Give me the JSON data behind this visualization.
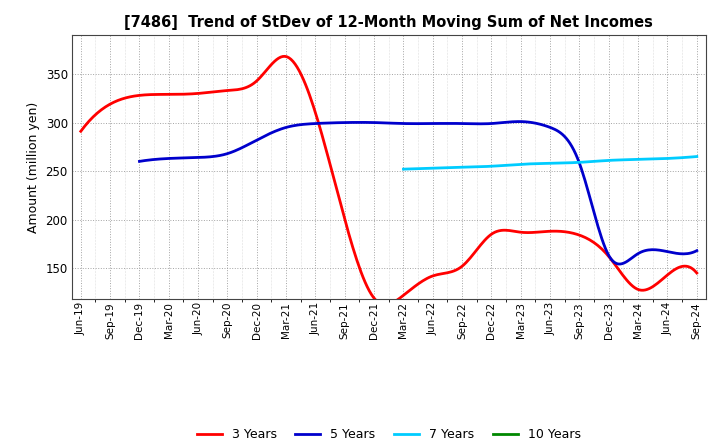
{
  "title": "[7486]  Trend of StDev of 12-Month Moving Sum of Net Incomes",
  "ylabel": "Amount (million yen)",
  "background_color": "#ffffff",
  "grid_color": "#999999",
  "ylim": [
    118,
    390
  ],
  "yticks": [
    150,
    200,
    250,
    300,
    350
  ],
  "x_labels": [
    "Jun-19",
    "Sep-19",
    "Dec-19",
    "Mar-20",
    "Jun-20",
    "Sep-20",
    "Dec-20",
    "Mar-21",
    "Jun-21",
    "Sep-21",
    "Dec-21",
    "Mar-22",
    "Jun-22",
    "Sep-22",
    "Dec-22",
    "Mar-23",
    "Jun-23",
    "Sep-23",
    "Dec-23",
    "Mar-24",
    "Jun-24",
    "Sep-24"
  ],
  "series": {
    "3 Years": {
      "color": "#ff0000",
      "data_x": [
        0,
        1,
        2,
        3,
        4,
        5,
        6,
        7,
        8,
        9,
        10,
        11,
        12,
        13,
        14,
        15,
        16,
        17,
        18,
        19,
        20,
        21
      ],
      "data_y": [
        291,
        319,
        328,
        329,
        330,
        333,
        343,
        368,
        310,
        200,
        119,
        122,
        142,
        152,
        185,
        187,
        188,
        184,
        162,
        128,
        143,
        145
      ]
    },
    "5 Years": {
      "color": "#0000cc",
      "data_x": [
        2,
        3,
        4,
        5,
        6,
        7,
        8,
        9,
        10,
        11,
        12,
        13,
        14,
        15,
        16,
        17,
        18,
        19,
        20,
        21
      ],
      "data_y": [
        260,
        263,
        264,
        268,
        282,
        295,
        299,
        300,
        300,
        299,
        299,
        299,
        299,
        301,
        295,
        258,
        163,
        165,
        167,
        168
      ]
    },
    "7 Years": {
      "color": "#00ccff",
      "data_x": [
        11,
        12,
        13,
        14,
        15,
        16,
        17,
        18,
        19,
        20,
        21
      ],
      "data_y": [
        252,
        253,
        254,
        255,
        257,
        258,
        259,
        261,
        262,
        263,
        265
      ]
    },
    "10 Years": {
      "color": "#008800",
      "data_x": [],
      "data_y": []
    }
  },
  "legend_labels": [
    "3 Years",
    "5 Years",
    "7 Years",
    "10 Years"
  ],
  "legend_colors": [
    "#ff0000",
    "#0000cc",
    "#00ccff",
    "#008800"
  ]
}
